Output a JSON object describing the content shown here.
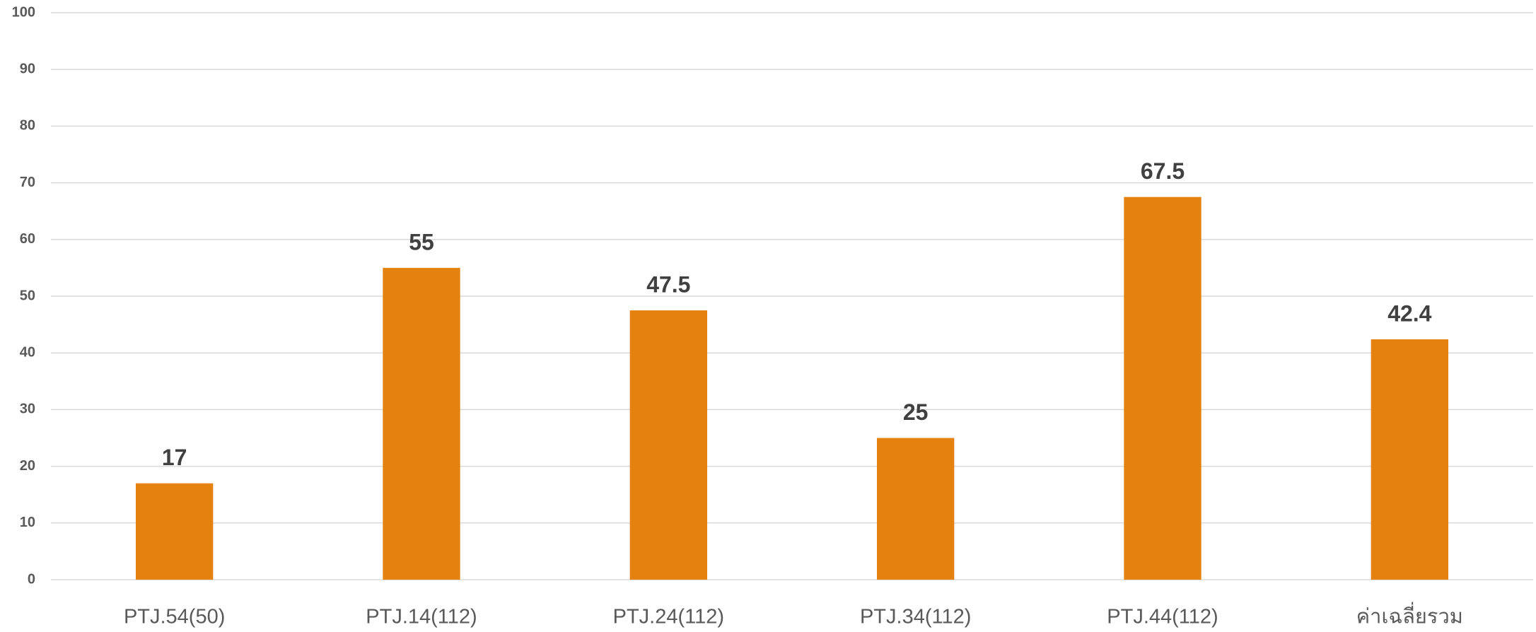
{
  "chart_data": {
    "type": "bar",
    "categories": [
      "PTJ.54(50)",
      "PTJ.14(112)",
      "PTJ.24(112)",
      "PTJ.34(112)",
      "PTJ.44(112)",
      "ค่าเฉลี่ยรวม"
    ],
    "values": [
      17,
      55,
      47.5,
      25,
      67.5,
      42.4
    ],
    "color": "#e5820f",
    "ylim": [
      0,
      100
    ],
    "yticks": [
      0,
      10,
      20,
      30,
      40,
      50,
      60,
      70,
      80,
      90,
      100
    ],
    "grid": true
  }
}
